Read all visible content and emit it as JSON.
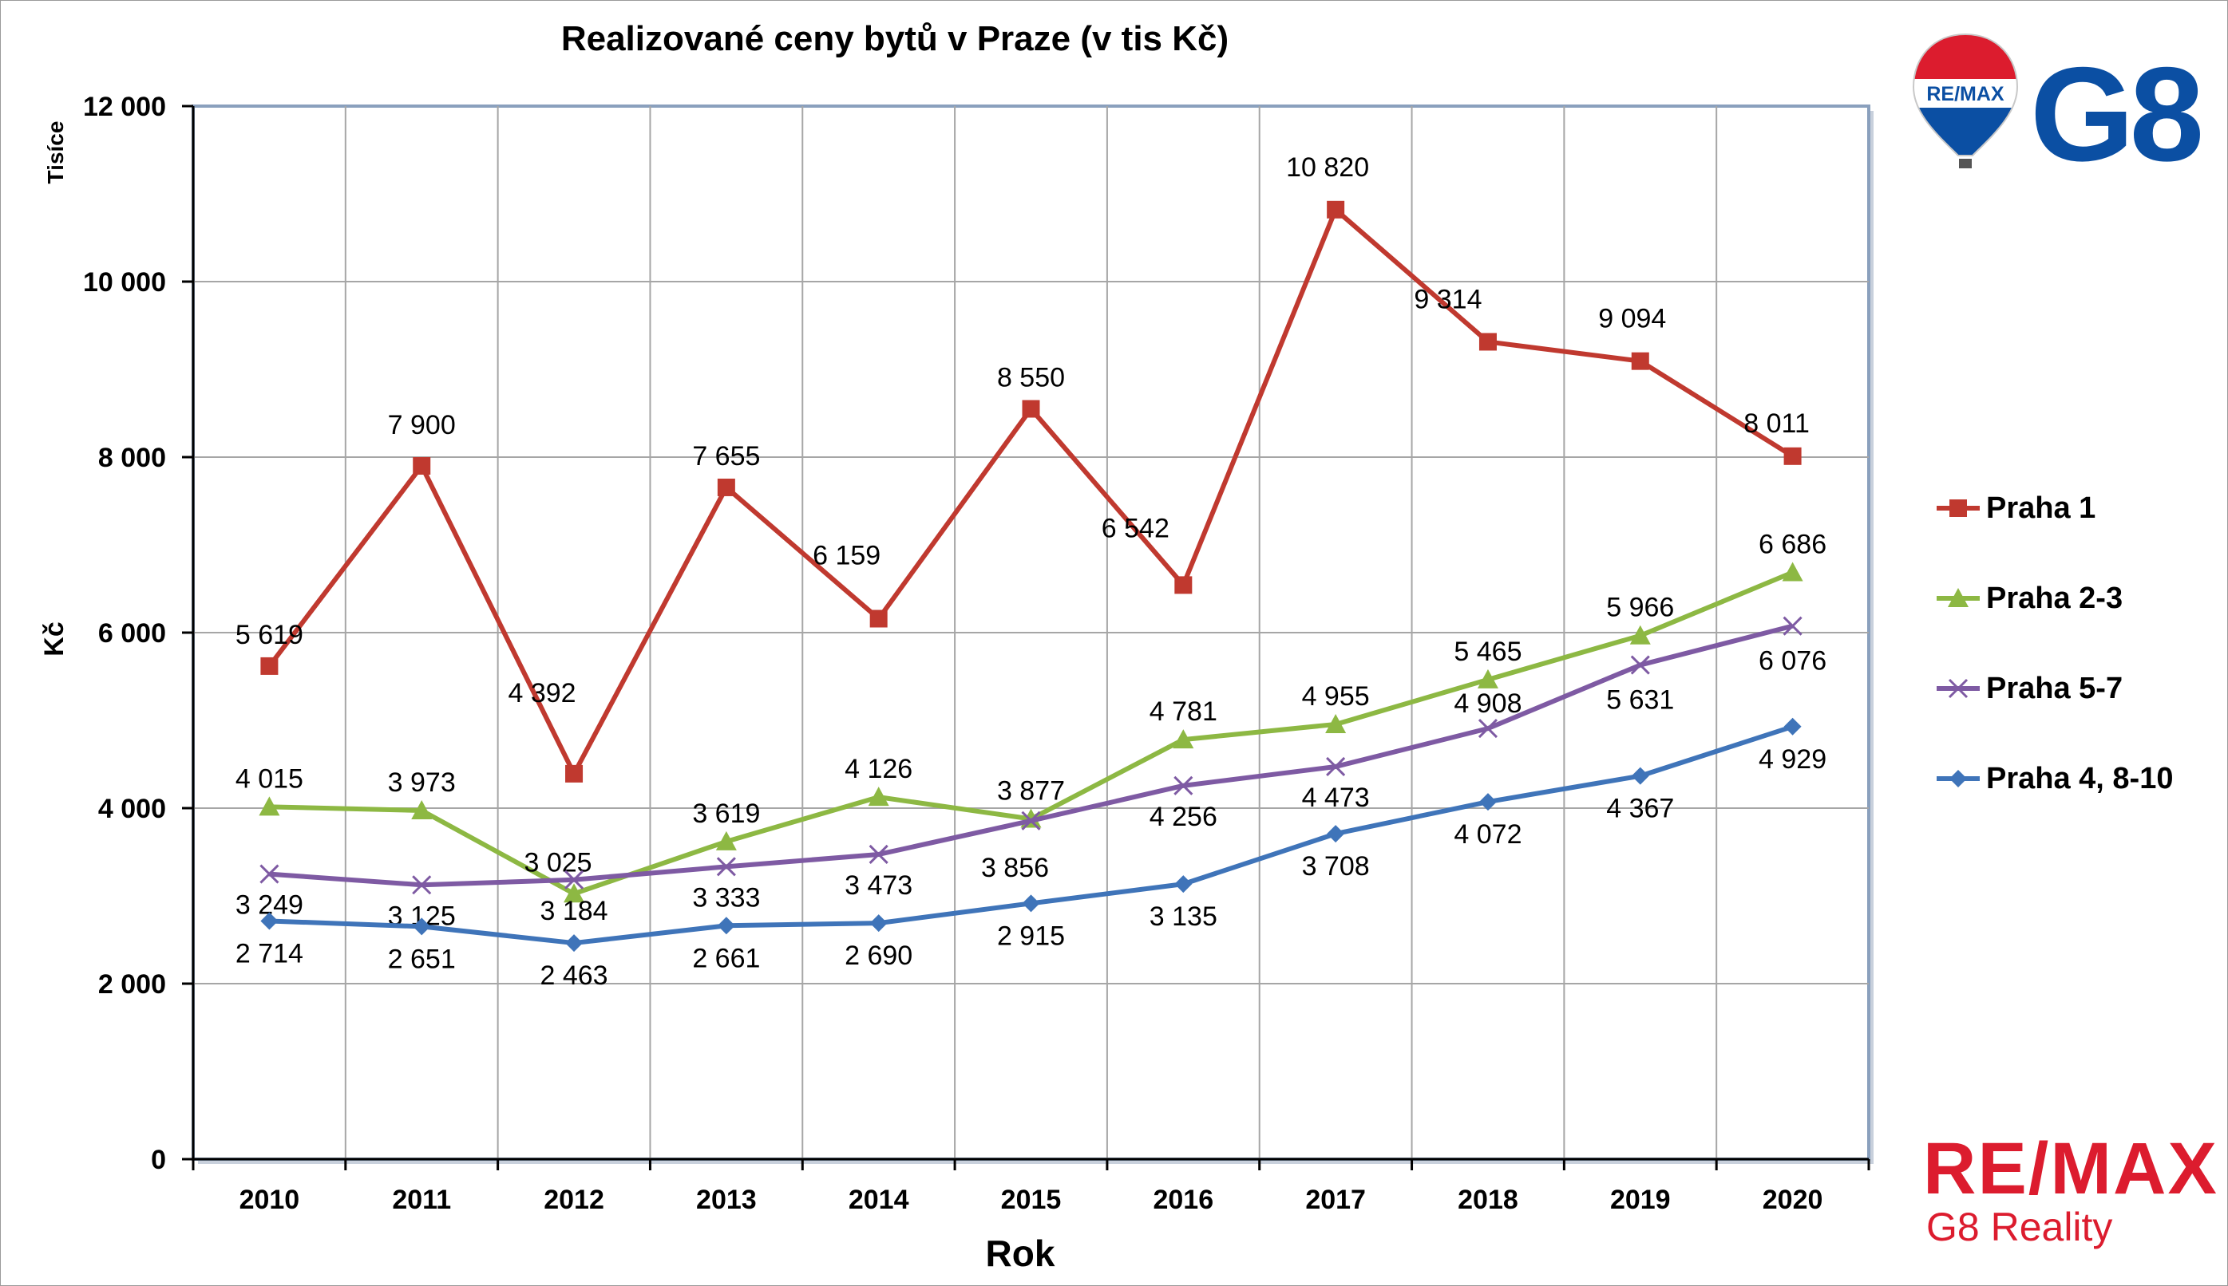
{
  "chart_data": {
    "type": "line",
    "title": "Realizované ceny bytů v Praze (v tis Kč)",
    "xlabel": "Rok",
    "ylabel": "Kč",
    "yunit_label": "Tisíce",
    "categories": [
      "2010",
      "2011",
      "2012",
      "2013",
      "2014",
      "2015",
      "2016",
      "2017",
      "2018",
      "2019",
      "2020"
    ],
    "ylim": [
      0,
      12000
    ],
    "yticks": [
      {
        "value": 0,
        "label": "0"
      },
      {
        "value": 2000,
        "label": "2 000"
      },
      {
        "value": 4000,
        "label": "4 000"
      },
      {
        "value": 6000,
        "label": "6 000"
      },
      {
        "value": 8000,
        "label": "8 000"
      },
      {
        "value": 10000,
        "label": "10 000"
      },
      {
        "value": 12000,
        "label": "12 000"
      }
    ],
    "grid": true,
    "legend_position": "right",
    "series": [
      {
        "name": "Praha 1",
        "color": "#c0392f",
        "marker": "square",
        "values": [
          5619,
          7900,
          4392,
          7655,
          6159,
          8550,
          6542,
          10820,
          9314,
          9094,
          8011
        ],
        "labels": [
          "5 619",
          "7 900",
          "4 392",
          "7 655",
          "6 159",
          "8 550",
          "6 542",
          "10 820",
          "9 314",
          "9 094",
          "8 011"
        ]
      },
      {
        "name": "Praha 2-3",
        "color": "#8db843",
        "marker": "triangle",
        "values": [
          4015,
          3973,
          3025,
          3619,
          4126,
          3877,
          4781,
          4955,
          5465,
          5966,
          6686
        ],
        "labels": [
          "4 015",
          "3 973",
          "3 025",
          "3 619",
          "4 126",
          "3 877",
          "4 781",
          "4 955",
          "5 465",
          "5 966",
          "6 686"
        ]
      },
      {
        "name": "Praha 5-7",
        "color": "#7e5aa3",
        "marker": "x",
        "values": [
          3249,
          3125,
          3184,
          3333,
          3473,
          3856,
          4256,
          4473,
          4908,
          5631,
          6076
        ],
        "labels": [
          "3 249",
          "3 125",
          "3 184",
          "3 333",
          "3 473",
          "3 856",
          "4 256",
          "4 473",
          "4 908",
          "5 631",
          "6 076"
        ]
      },
      {
        "name": "Praha 4, 8-10",
        "color": "#3f74b9",
        "marker": "diamond",
        "values": [
          2714,
          2651,
          2463,
          2661,
          2690,
          2915,
          3135,
          3708,
          4072,
          4367,
          4929
        ],
        "labels": [
          "2 714",
          "2 651",
          "2 463",
          "2 661",
          "2 690",
          "2 915",
          "3 135",
          "3 708",
          "4 072",
          "4 367",
          "4 929"
        ]
      }
    ]
  },
  "branding": {
    "remax_text": "RE/MAX",
    "remax_sub": "G8 Reality",
    "g8_text": "G8",
    "balloon_text": "RE/MAX",
    "colors": {
      "red": "#dc1c2e",
      "blue": "#0b4fa3"
    }
  }
}
